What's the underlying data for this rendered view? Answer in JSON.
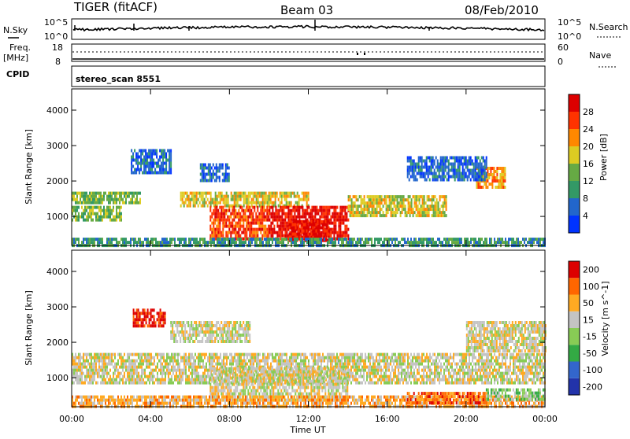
{
  "header": {
    "station": "TIGER (fitACF)",
    "beam": "Beam 03",
    "date": "08/Feb/2010"
  },
  "top_panels": {
    "nsky_label": "N.Sky",
    "nsearch_label": "N.Search",
    "nsky_ticks": [
      "10^5",
      "10^0"
    ],
    "nsearch_ticks": [
      "10^5",
      "10^0"
    ],
    "freq_label": "Freq.",
    "freq_unit": "[MHz]",
    "freq_ticks": [
      "18",
      "8"
    ],
    "nave_label": "Nave",
    "nave_ticks": [
      "60",
      "0"
    ],
    "cpid_label": "CPID",
    "cpid_value": "stereo_scan 8551"
  },
  "chart_data": [
    {
      "type": "heatmap",
      "name": "power-panel",
      "ylabel": "Slant Range [km]",
      "y_ticks": [
        "1000",
        "2000",
        "3000",
        "4000"
      ],
      "ylim": [
        180,
        4600
      ],
      "xlim_hours": [
        0,
        24
      ],
      "colorbar": {
        "label": "Power [dB]",
        "ticks": [
          "28",
          "24",
          "20",
          "16",
          "12",
          "8",
          "4"
        ],
        "colors": [
          "#0033ff",
          "#2266cc",
          "#339966",
          "#66aa44",
          "#ddcc22",
          "#ff8800",
          "#ff3300",
          "#dd0000"
        ]
      },
      "regions": [
        {
          "t0": 0,
          "t1": 3.5,
          "r0": 1350,
          "r1": 1700,
          "level": 3
        },
        {
          "t0": 0,
          "t1": 2.5,
          "r0": 900,
          "r1": 1300,
          "level": 3
        },
        {
          "t0": 5.5,
          "t1": 12,
          "r0": 1300,
          "r1": 1700,
          "level": 4
        },
        {
          "t0": 7,
          "t1": 10,
          "r0": 400,
          "r1": 1300,
          "level": 6
        },
        {
          "t0": 10,
          "t1": 14,
          "r0": 400,
          "r1": 1300,
          "level": 7
        },
        {
          "t0": 11,
          "t1": 13,
          "r0": 350,
          "r1": 900,
          "level": 7
        },
        {
          "t0": 14,
          "t1": 19,
          "r0": 1000,
          "r1": 1600,
          "level": 4
        },
        {
          "t0": 20.5,
          "t1": 22,
          "r0": 1800,
          "r1": 2400,
          "level": 5
        },
        {
          "t0": 0,
          "t1": 24,
          "r0": 200,
          "r1": 400,
          "level": 2
        },
        {
          "t0": 3,
          "t1": 5,
          "r0": 2200,
          "r1": 2900,
          "level": 1
        },
        {
          "t0": 6.5,
          "t1": 8,
          "r0": 2000,
          "r1": 2500,
          "level": 1
        },
        {
          "t0": 17,
          "t1": 21,
          "r0": 2000,
          "r1": 2700,
          "level": 1
        }
      ]
    },
    {
      "type": "heatmap",
      "name": "velocity-panel",
      "ylabel": "Slant Range [km]",
      "y_ticks": [
        "1000",
        "2000",
        "3000",
        "4000"
      ],
      "ylim": [
        180,
        4600
      ],
      "xlim_hours": [
        0,
        24
      ],
      "colorbar": {
        "label": "Velocity [m s^-1]",
        "ticks": [
          "200",
          "100",
          "50",
          "15",
          "-15",
          "-50",
          "-100",
          "-200"
        ],
        "colors": [
          "#2233aa",
          "#3366cc",
          "#33aa44",
          "#88cc55",
          "#c4c4c4",
          "#ffaa22",
          "#ff6600",
          "#dd0000"
        ]
      },
      "regions": [
        {
          "t0": 0,
          "t1": 24,
          "r0": 900,
          "r1": 1700,
          "level": 4
        },
        {
          "t0": 7,
          "t1": 14,
          "r0": 400,
          "r1": 1300,
          "level": 4
        },
        {
          "t0": 0,
          "t1": 24,
          "r0": 200,
          "r1": 500,
          "level": 5
        },
        {
          "t0": 17,
          "t1": 21,
          "r0": 300,
          "r1": 600,
          "level": 6
        },
        {
          "t0": 3.1,
          "t1": 4.7,
          "r0": 2500,
          "r1": 2950,
          "level": 7
        },
        {
          "t0": 5,
          "t1": 9,
          "r0": 2000,
          "r1": 2600,
          "level": 4
        },
        {
          "t0": 20,
          "t1": 24,
          "r0": 1800,
          "r1": 2600,
          "level": 4
        },
        {
          "t0": 21,
          "t1": 24,
          "r0": 400,
          "r1": 700,
          "level": 3
        }
      ]
    }
  ],
  "x_axis": {
    "ticks": [
      "00:00",
      "04:00",
      "08:00",
      "12:00",
      "16:00",
      "20:00",
      "00:00"
    ],
    "label": "Time UT"
  }
}
